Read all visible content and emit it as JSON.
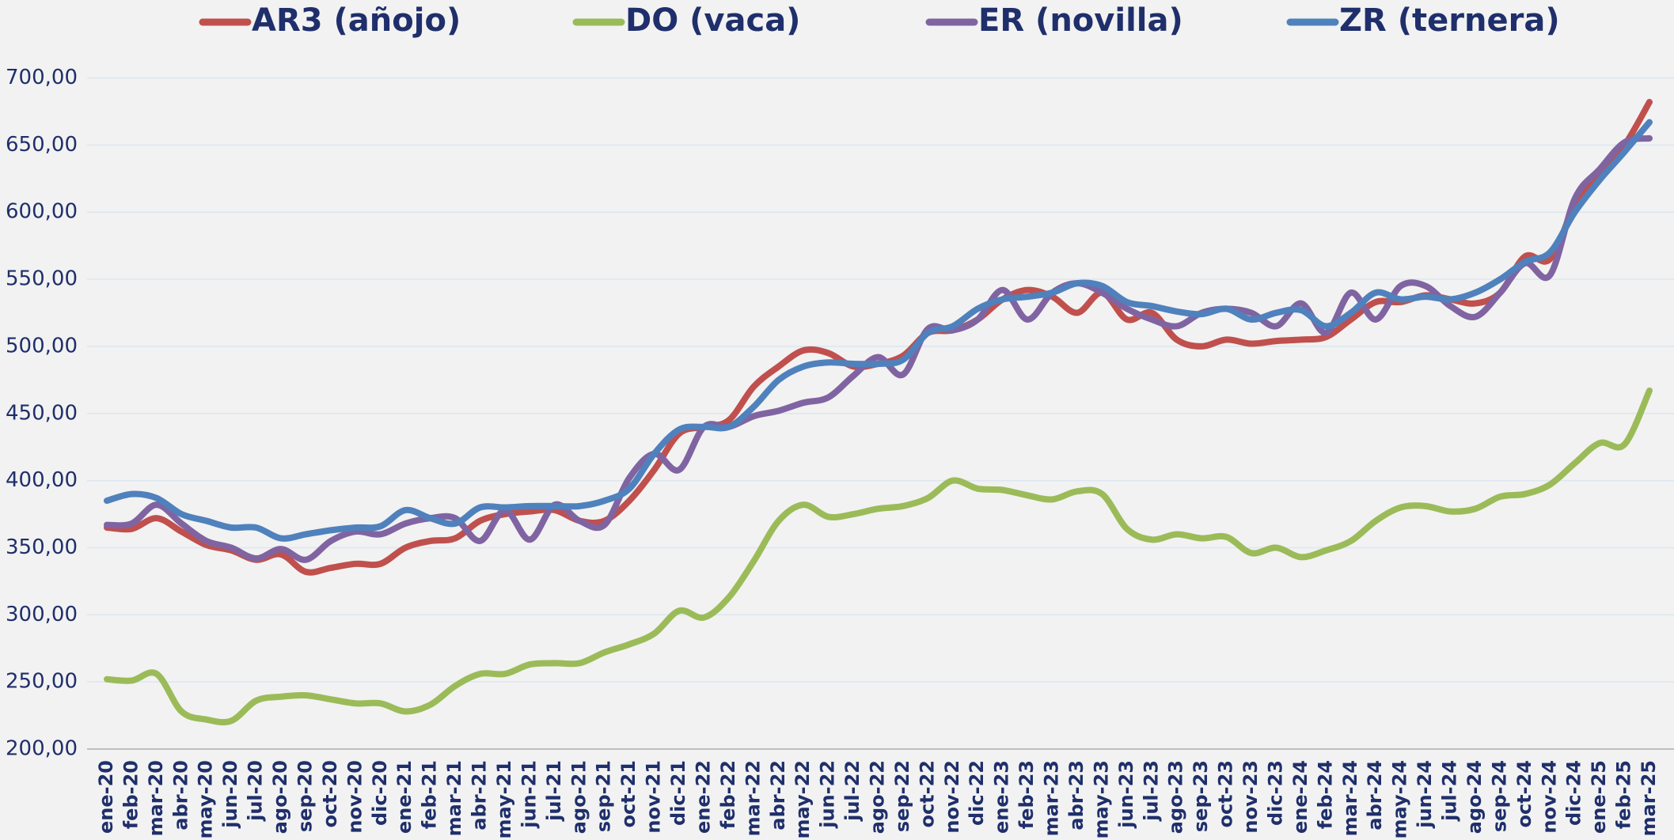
{
  "chart_data": {
    "type": "line",
    "categories": [
      "ene-20",
      "feb-20",
      "mar-20",
      "abr-20",
      "may-20",
      "jun-20",
      "jul-20",
      "ago-20",
      "sep-20",
      "oct-20",
      "nov-20",
      "dic-20",
      "ene-21",
      "feb-21",
      "mar-21",
      "abr-21",
      "may-21",
      "jun-21",
      "jul-21",
      "ago-21",
      "sep-21",
      "oct-21",
      "nov-21",
      "dic-21",
      "ene-22",
      "feb-22",
      "mar-22",
      "abr-22",
      "may-22",
      "jun-22",
      "jul-22",
      "ago-22",
      "sep-22",
      "oct-22",
      "nov-22",
      "dic-22",
      "ene-23",
      "feb-23",
      "mar-23",
      "abr-23",
      "may-23",
      "jun-23",
      "jul-23",
      "ago-23",
      "sep-23",
      "oct-23",
      "nov-23",
      "dic-23",
      "ene-24",
      "feb-24",
      "mar-24",
      "abr-24",
      "may-24",
      "jun-24",
      "jul-24",
      "ago-24",
      "sep-24",
      "oct-24",
      "nov-24",
      "dic-24",
      "ene-25",
      "feb-25",
      "mar-25"
    ],
    "series": [
      {
        "name": "AR3 (añojo)",
        "color": "#c0504d",
        "values": [
          365,
          364,
          372,
          362,
          352,
          348,
          341,
          345,
          332,
          335,
          338,
          338,
          350,
          355,
          357,
          370,
          375,
          377,
          378,
          370,
          370,
          385,
          408,
          435,
          440,
          445,
          470,
          485,
          497,
          495,
          485,
          487,
          493,
          510,
          512,
          520,
          535,
          542,
          537,
          525,
          540,
          520,
          525,
          505,
          500,
          505,
          502,
          504,
          505,
          507,
          520,
          533,
          533,
          538,
          535,
          532,
          540,
          567,
          565,
          605,
          630,
          650,
          682
        ]
      },
      {
        "name": "DO (vaca)",
        "color": "#9bbb59",
        "values": [
          252,
          251,
          256,
          228,
          222,
          221,
          236,
          239,
          240,
          237,
          234,
          234,
          228,
          233,
          247,
          256,
          256,
          263,
          264,
          264,
          272,
          278,
          286,
          303,
          298,
          313,
          340,
          370,
          382,
          373,
          375,
          379,
          381,
          387,
          400,
          394,
          393,
          389,
          386,
          392,
          390,
          364,
          356,
          360,
          357,
          358,
          346,
          350,
          343,
          348,
          355,
          370,
          380,
          381,
          377,
          379,
          388,
          390,
          397,
          413,
          428,
          427,
          467
        ]
      },
      {
        "name": "ER (novilla)",
        "color": "#8064a2",
        "values": [
          367,
          368,
          382,
          368,
          355,
          350,
          342,
          349,
          341,
          355,
          362,
          360,
          368,
          372,
          372,
          355,
          378,
          356,
          382,
          370,
          367,
          402,
          420,
          408,
          440,
          440,
          448,
          452,
          458,
          462,
          478,
          492,
          479,
          513,
          512,
          520,
          542,
          520,
          540,
          547,
          540,
          528,
          520,
          515,
          525,
          528,
          525,
          515,
          532,
          510,
          540,
          520,
          545,
          545,
          530,
          522,
          540,
          562,
          553,
          610,
          632,
          652,
          655
        ]
      },
      {
        "name": "ZR (ternera)",
        "color": "#4f81bd",
        "values": [
          385,
          390,
          387,
          375,
          370,
          365,
          365,
          357,
          360,
          363,
          365,
          366,
          378,
          372,
          368,
          380,
          380,
          381,
          381,
          381,
          385,
          394,
          420,
          438,
          440,
          440,
          455,
          475,
          485,
          488,
          487,
          487,
          490,
          510,
          515,
          528,
          535,
          537,
          540,
          547,
          545,
          533,
          530,
          526,
          524,
          528,
          520,
          525,
          527,
          515,
          525,
          540,
          535,
          537,
          535,
          540,
          550,
          563,
          570,
          600,
          624,
          645,
          667
        ]
      }
    ],
    "ylim": [
      200,
      700
    ],
    "yticks": [
      {
        "value": 200,
        "label": "200,00"
      },
      {
        "value": 250,
        "label": "250,00"
      },
      {
        "value": 300,
        "label": "300,00"
      },
      {
        "value": 350,
        "label": "350,00"
      },
      {
        "value": 400,
        "label": "400,00"
      },
      {
        "value": 450,
        "label": "450,00"
      },
      {
        "value": 500,
        "label": "500,00"
      },
      {
        "value": 550,
        "label": "550,00"
      },
      {
        "value": 600,
        "label": "600,00"
      },
      {
        "value": 650,
        "label": "650,00"
      },
      {
        "value": 700,
        "label": "700,00"
      }
    ],
    "grid": true,
    "legend": "top"
  }
}
